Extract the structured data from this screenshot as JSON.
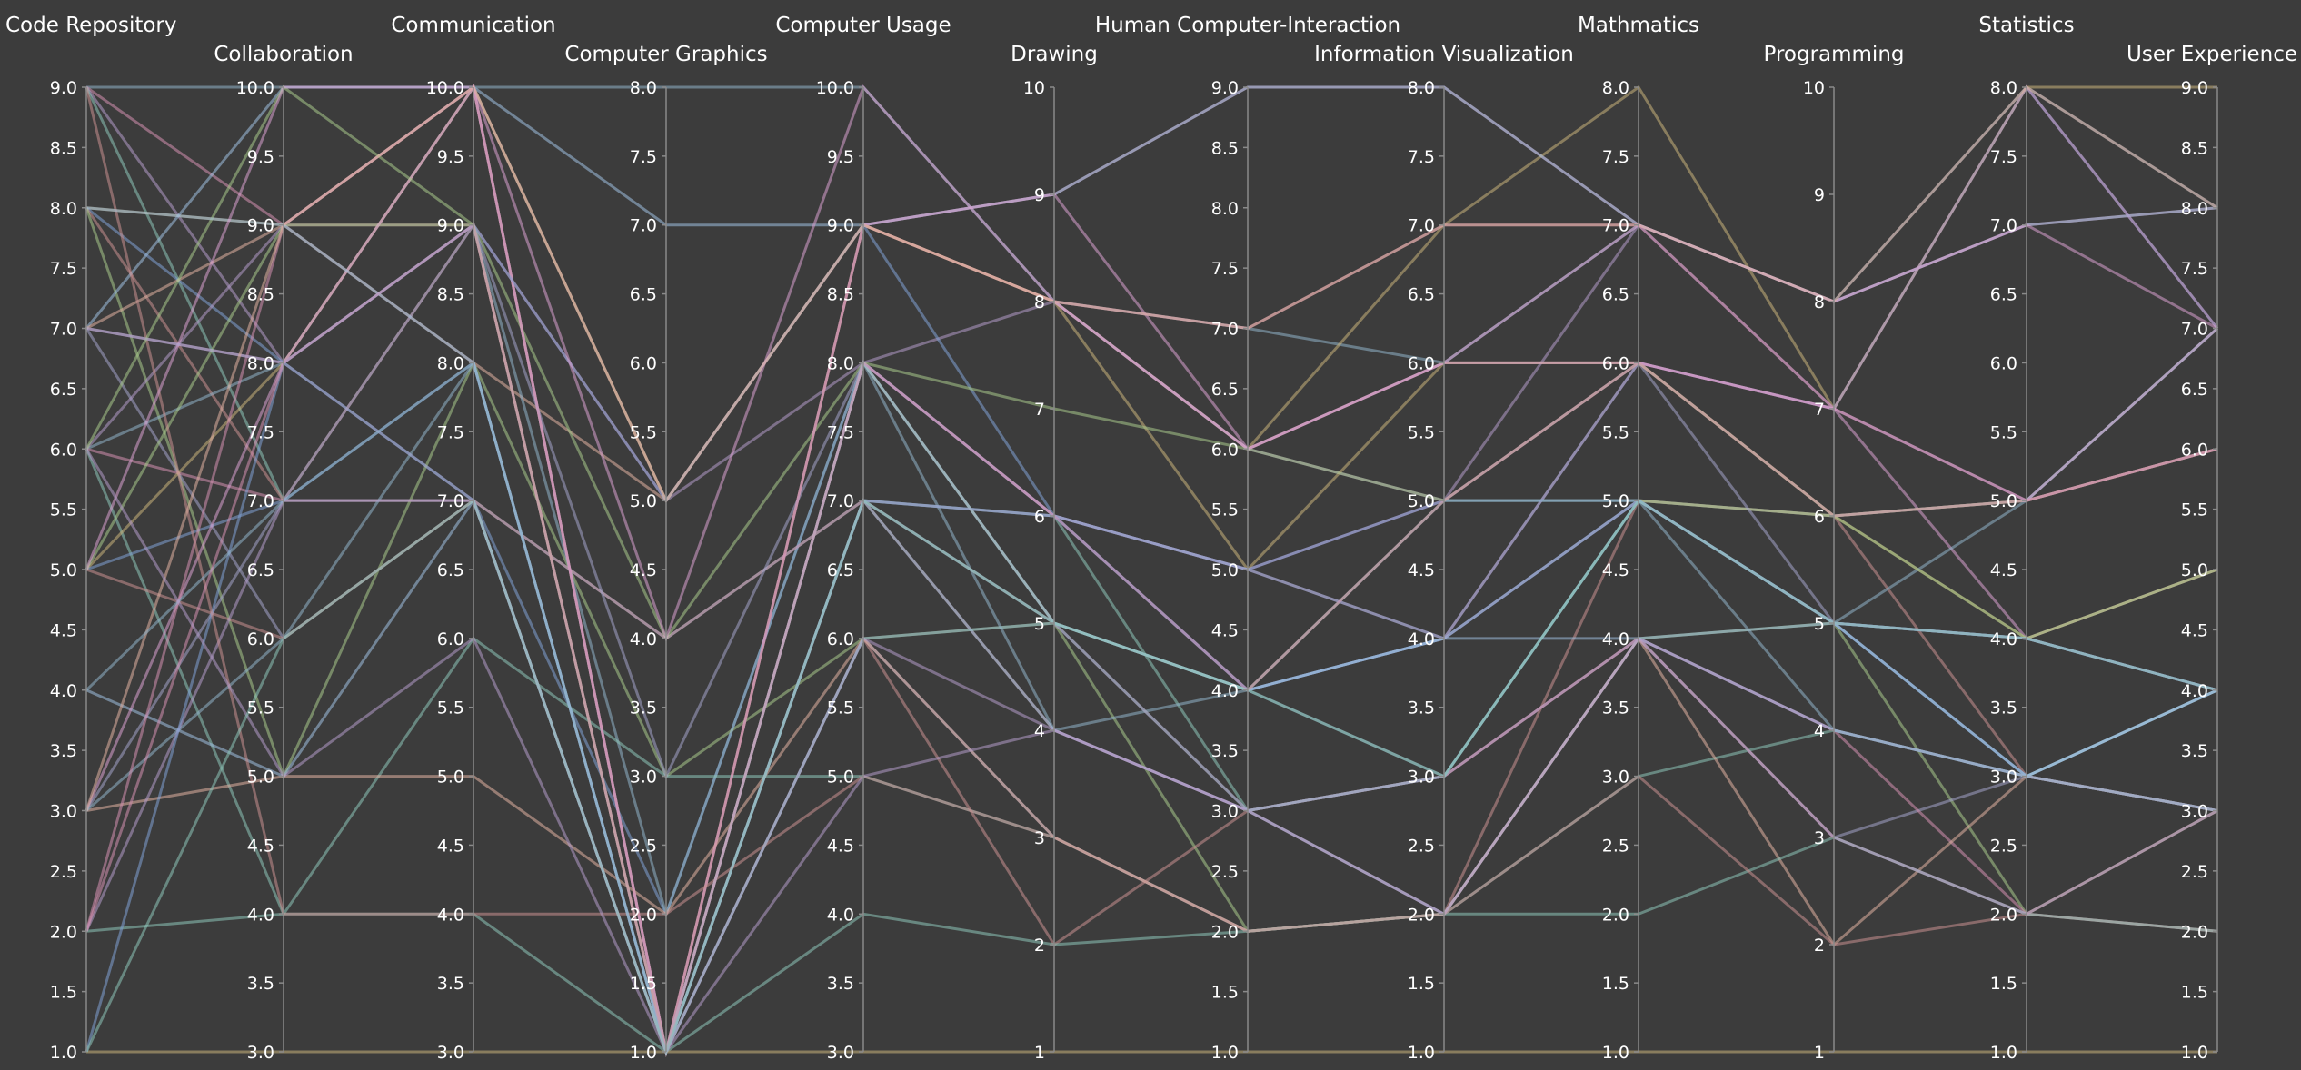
{
  "chart_data": {
    "type": "parallel_coordinates",
    "dimensions": [
      {
        "key": "code_repository",
        "label": "Code Repository",
        "range": [
          1,
          9
        ],
        "ticks": [
          "1.0",
          "1.5",
          "2.0",
          "2.5",
          "3.0",
          "3.5",
          "4.0",
          "4.5",
          "5.0",
          "5.5",
          "6.0",
          "6.5",
          "7.0",
          "7.5",
          "8.0",
          "8.5",
          "9.0"
        ]
      },
      {
        "key": "collaboration",
        "label": "Collaboration",
        "range": [
          3,
          10
        ],
        "ticks": [
          "3.0",
          "3.5",
          "4.0",
          "4.5",
          "5.0",
          "5.5",
          "6.0",
          "6.5",
          "7.0",
          "7.5",
          "8.0",
          "8.5",
          "9.0",
          "9.5",
          "10.0"
        ]
      },
      {
        "key": "communication",
        "label": "Communication",
        "range": [
          3,
          10
        ],
        "ticks": [
          "3.0",
          "3.5",
          "4.0",
          "4.5",
          "5.0",
          "5.5",
          "6.0",
          "6.5",
          "7.0",
          "7.5",
          "8.0",
          "8.5",
          "9.0",
          "9.5",
          "10.0"
        ]
      },
      {
        "key": "computer_graphics",
        "label": "Computer Graphics",
        "range": [
          1,
          8
        ],
        "ticks": [
          "1.0",
          "1.5",
          "2.0",
          "2.5",
          "3.0",
          "3.5",
          "4.0",
          "4.5",
          "5.0",
          "5.5",
          "6.0",
          "6.5",
          "7.0",
          "7.5",
          "8.0"
        ]
      },
      {
        "key": "computer_usage",
        "label": "Computer Usage",
        "range": [
          3,
          10
        ],
        "ticks": [
          "3.0",
          "3.5",
          "4.0",
          "4.5",
          "5.0",
          "5.5",
          "6.0",
          "6.5",
          "7.0",
          "7.5",
          "8.0",
          "8.5",
          "9.0",
          "9.5",
          "10.0"
        ]
      },
      {
        "key": "drawing",
        "label": "Drawing",
        "range": [
          1,
          10
        ],
        "ticks": [
          "1",
          "2",
          "3",
          "4",
          "5",
          "6",
          "7",
          "8",
          "9",
          "10"
        ]
      },
      {
        "key": "hci",
        "label": "Human Computer-Interaction",
        "range": [
          1,
          9
        ],
        "ticks": [
          "1.0",
          "1.5",
          "2.0",
          "2.5",
          "3.0",
          "3.5",
          "4.0",
          "4.5",
          "5.0",
          "5.5",
          "6.0",
          "6.5",
          "7.0",
          "7.5",
          "8.0",
          "8.5",
          "9.0"
        ]
      },
      {
        "key": "info_vis",
        "label": "Information Visualization",
        "range": [
          1,
          8
        ],
        "ticks": [
          "1.0",
          "1.5",
          "2.0",
          "2.5",
          "3.0",
          "3.5",
          "4.0",
          "4.5",
          "5.0",
          "5.5",
          "6.0",
          "6.5",
          "7.0",
          "7.5",
          "8.0"
        ]
      },
      {
        "key": "mathmatics",
        "label": "Mathmatics",
        "range": [
          1,
          8
        ],
        "ticks": [
          "1.0",
          "1.5",
          "2.0",
          "2.5",
          "3.0",
          "3.5",
          "4.0",
          "4.5",
          "5.0",
          "5.5",
          "6.0",
          "6.5",
          "7.0",
          "7.5",
          "8.0"
        ]
      },
      {
        "key": "programming",
        "label": "Programming",
        "range": [
          1,
          10
        ],
        "ticks": [
          "1",
          "2",
          "3",
          "4",
          "5",
          "6",
          "7",
          "8",
          "9",
          "10"
        ]
      },
      {
        "key": "statistics",
        "label": "Statistics",
        "range": [
          1,
          8
        ],
        "ticks": [
          "1.0",
          "1.5",
          "2.0",
          "2.5",
          "3.0",
          "3.5",
          "4.0",
          "4.5",
          "5.0",
          "5.5",
          "6.0",
          "6.5",
          "7.0",
          "7.5",
          "8.0"
        ]
      },
      {
        "key": "user_experience",
        "label": "User Experience",
        "range": [
          1,
          9
        ],
        "ticks": [
          "1.0",
          "1.5",
          "2.0",
          "2.5",
          "3.0",
          "3.5",
          "4.0",
          "4.5",
          "5.0",
          "5.5",
          "6.0",
          "6.5",
          "7.0",
          "7.5",
          "8.0",
          "8.5",
          "9.0"
        ]
      }
    ],
    "palette": [
      "#8fb3c9",
      "#d48fb0",
      "#b39bc8",
      "#8cc4b8",
      "#c9b27a",
      "#7fa0d4",
      "#c98f8f",
      "#a8c98a",
      "#9fc0e0",
      "#d8a0d0",
      "#a3a3c8",
      "#e0b0a0"
    ],
    "records": [
      [
        9,
        10,
        10,
        8,
        10,
        8,
        7,
        6,
        7,
        8,
        8,
        8
      ],
      [
        9,
        9,
        9,
        5,
        9,
        9,
        9,
        8,
        7,
        8,
        7,
        8
      ],
      [
        9,
        8,
        10,
        5,
        8,
        5,
        4,
        4,
        6,
        7,
        8,
        7
      ],
      [
        9,
        7,
        7,
        4,
        7,
        6,
        3,
        3,
        5,
        6,
        5,
        7
      ],
      [
        8,
        9,
        10,
        1,
        9,
        8,
        6,
        7,
        8,
        7,
        8,
        9
      ],
      [
        8,
        8,
        7,
        2,
        8,
        6,
        4,
        5,
        5,
        5,
        4,
        4
      ],
      [
        8,
        7,
        9,
        1,
        7,
        4,
        3,
        2,
        5,
        6,
        3,
        3
      ],
      [
        8,
        5,
        8,
        3,
        6,
        5,
        2,
        2,
        4,
        5,
        2,
        3
      ],
      [
        7,
        10,
        10,
        7,
        9,
        9,
        9,
        8,
        7,
        8,
        7,
        8
      ],
      [
        7,
        8,
        9,
        1,
        8,
        6,
        5,
        5,
        6,
        7,
        4,
        5
      ],
      [
        7,
        6,
        7,
        1,
        6,
        3,
        2,
        2,
        4,
        3,
        3,
        4
      ],
      [
        7,
        9,
        8,
        5,
        9,
        8,
        6,
        6,
        6,
        6,
        5,
        6
      ],
      [
        6,
        8,
        9,
        2,
        8,
        4,
        4,
        4,
        5,
        5,
        3,
        3
      ],
      [
        6,
        7,
        7,
        4,
        7,
        5,
        3,
        3,
        4,
        4,
        2,
        2
      ],
      [
        6,
        9,
        10,
        1,
        8,
        8,
        6,
        5,
        7,
        7,
        8,
        7
      ],
      [
        6,
        4,
        6,
        3,
        5,
        3,
        2,
        2,
        3,
        4,
        3,
        4
      ],
      [
        5,
        8,
        10,
        5,
        9,
        8,
        5,
        6,
        6,
        6,
        4,
        5
      ],
      [
        5,
        7,
        8,
        1,
        7,
        6,
        4,
        4,
        5,
        5,
        3,
        3
      ],
      [
        5,
        6,
        7,
        1,
        6,
        2,
        3,
        3,
        4,
        3,
        2,
        2
      ],
      [
        5,
        9,
        9,
        4,
        8,
        5,
        4,
        5,
        5,
        6,
        5,
        6
      ],
      [
        4,
        5,
        7,
        1,
        7,
        4,
        3,
        2,
        4,
        4,
        3,
        4
      ],
      [
        3,
        8,
        10,
        1,
        9,
        9,
        6,
        6,
        7,
        8,
        7,
        7
      ],
      [
        3,
        7,
        9,
        3,
        8,
        6,
        5,
        4,
        6,
        5,
        4,
        4
      ],
      [
        3,
        5,
        5,
        2,
        6,
        3,
        2,
        2,
        4,
        2,
        3,
        3
      ],
      [
        3,
        6,
        8,
        1,
        7,
        5,
        4,
        3,
        5,
        5,
        5,
        7
      ],
      [
        2,
        9,
        10,
        1,
        9,
        8,
        7,
        7,
        7,
        7,
        5,
        6
      ],
      [
        2,
        7,
        7,
        1,
        6,
        4,
        3,
        3,
        4,
        4,
        3,
        3
      ],
      [
        2,
        4,
        4,
        1,
        4,
        2,
        2,
        2,
        2,
        3,
        2,
        2
      ],
      [
        1,
        3,
        3,
        1,
        3,
        1,
        1,
        1,
        1,
        1,
        1,
        1
      ],
      [
        1,
        8,
        9,
        5,
        9,
        6,
        5,
        5,
        5,
        5,
        4,
        4
      ],
      [
        9,
        4,
        4,
        2,
        5,
        3,
        2,
        2,
        3,
        2,
        2,
        3
      ],
      [
        6,
        10,
        9,
        1,
        8,
        7,
        6,
        5,
        6,
        6,
        4,
        5
      ],
      [
        8,
        9,
        8,
        1,
        8,
        5,
        4,
        4,
        4,
        5,
        3,
        4
      ],
      [
        5,
        10,
        10,
        4,
        10,
        8,
        6,
        6,
        6,
        7,
        5,
        7
      ],
      [
        7,
        8,
        7,
        1,
        7,
        6,
        5,
        4,
        5,
        5,
        4,
        4
      ],
      [
        3,
        9,
        10,
        5,
        9,
        8,
        7,
        7,
        7,
        8,
        8,
        8
      ],
      [
        4,
        7,
        8,
        1,
        6,
        5,
        3,
        3,
        5,
        4,
        3,
        3
      ],
      [
        2,
        8,
        9,
        1,
        8,
        6,
        4,
        5,
        6,
        6,
        5,
        6
      ],
      [
        6,
        5,
        6,
        1,
        5,
        4,
        3,
        2,
        4,
        3,
        2,
        3
      ],
      [
        1,
        6,
        7,
        1,
        7,
        5,
        4,
        3,
        5,
        5,
        4,
        4
      ]
    ]
  }
}
